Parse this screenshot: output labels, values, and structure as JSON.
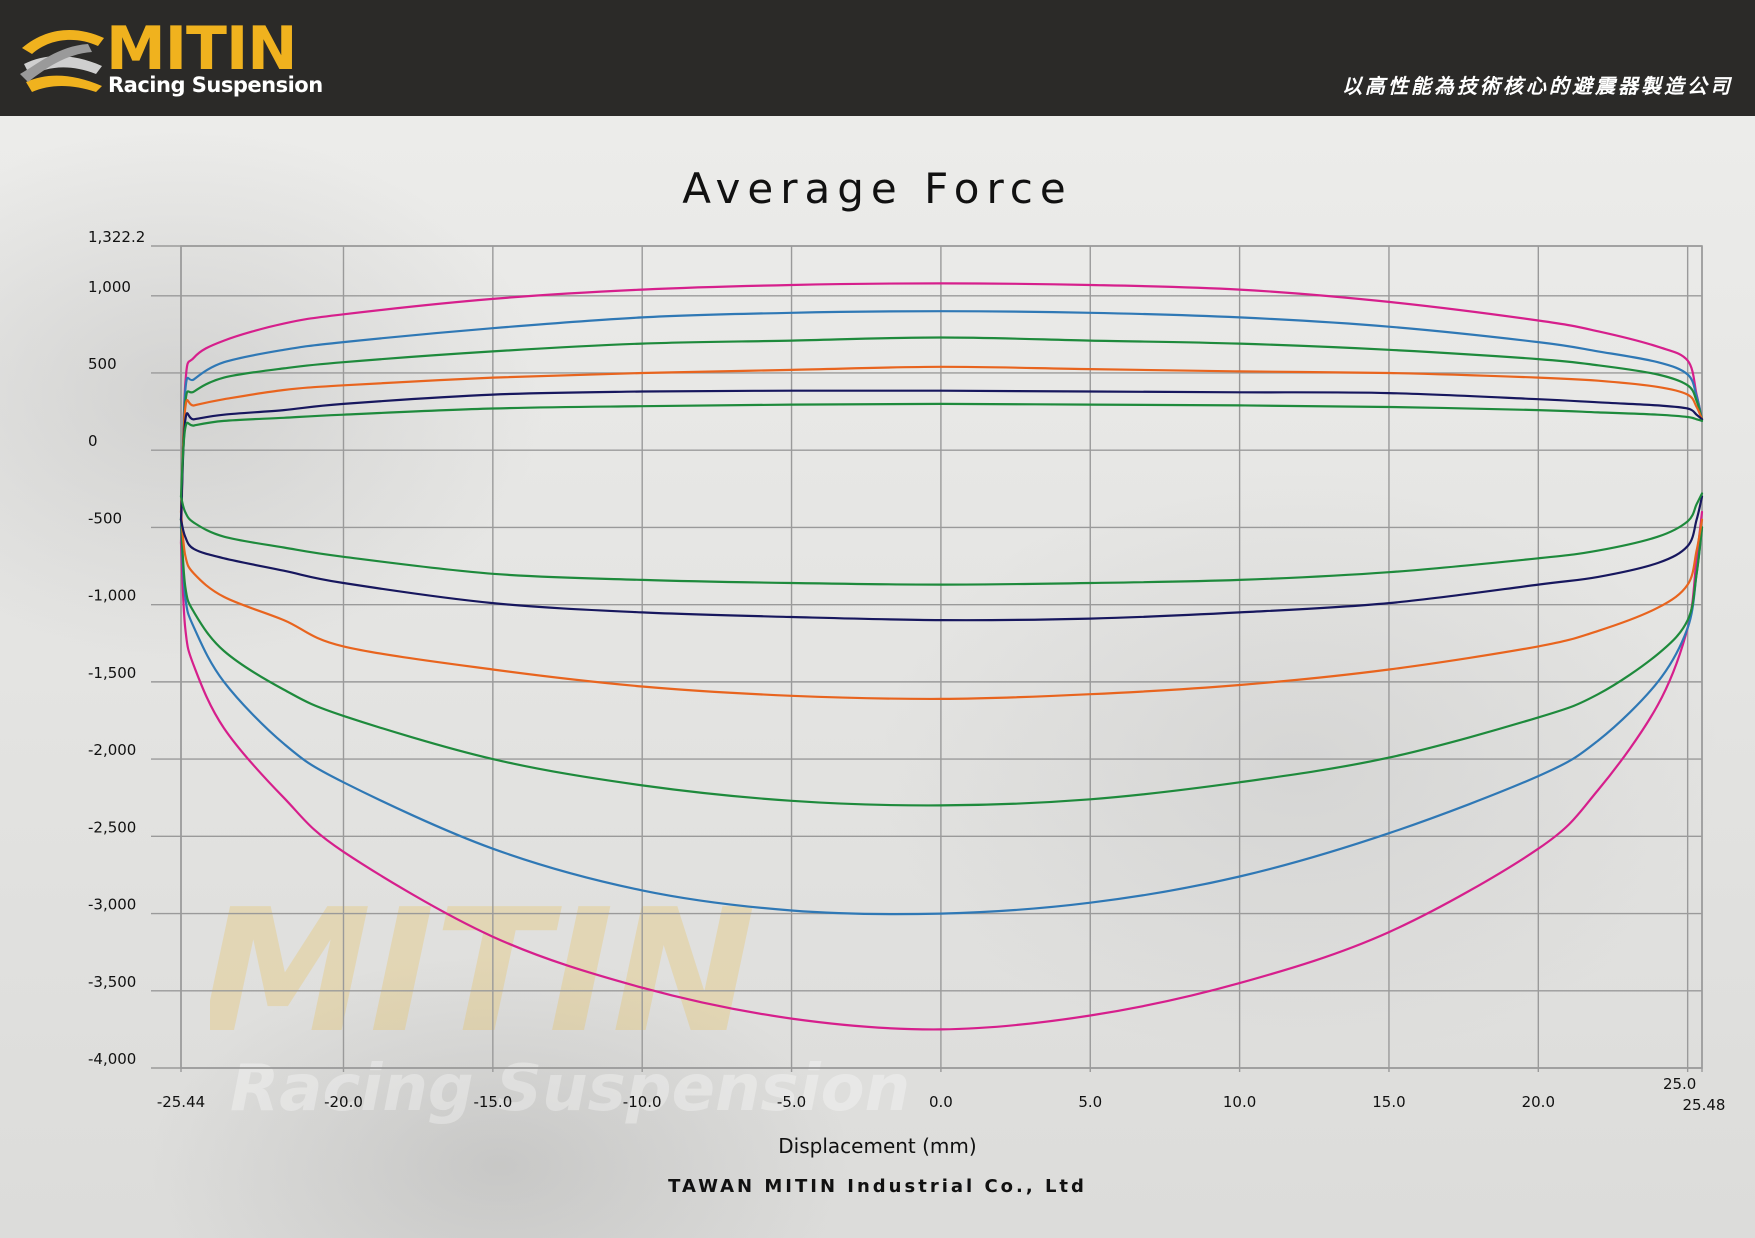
{
  "header": {
    "brand": "MITIN",
    "brand_sub": "Racing Suspension",
    "tagline": "以高性能為技術核心的避震器製造公司"
  },
  "colors": {
    "header_bg": "#2b2a28",
    "brand_gold": "#f0b21e",
    "grid": "#9a9a9a"
  },
  "footer": {
    "company": "TAWAN MITIN Industrial Co., Ltd"
  },
  "chart_data": {
    "type": "line",
    "title": "Average Force",
    "xlabel": "Displacement (mm)",
    "ylabel": "",
    "xlim": [
      -25.44,
      25.48
    ],
    "ylim": [
      -4000,
      1322.2
    ],
    "grid": true,
    "legend": "none",
    "x_ticks": [
      {
        "v": -25.44,
        "label": "-25.44"
      },
      {
        "v": -20.0,
        "label": "-20.0"
      },
      {
        "v": -15.0,
        "label": "-15.0"
      },
      {
        "v": -10.0,
        "label": "-10.0"
      },
      {
        "v": -5.0,
        "label": "-5.0"
      },
      {
        "v": 0.0,
        "label": "0.0"
      },
      {
        "v": 5.0,
        "label": "5.0"
      },
      {
        "v": 10.0,
        "label": "10.0"
      },
      {
        "v": 15.0,
        "label": "15.0"
      },
      {
        "v": 20.0,
        "label": "20.0"
      },
      {
        "v": 25.0,
        "label": "25.0"
      },
      {
        "v": 25.48,
        "label": "25.48"
      }
    ],
    "y_ticks": [
      {
        "v": 1322.2,
        "label": "1,322.2"
      },
      {
        "v": 1000,
        "label": "1,000"
      },
      {
        "v": 500,
        "label": "500"
      },
      {
        "v": 0,
        "label": "0"
      },
      {
        "v": -500,
        "label": "-500"
      },
      {
        "v": -1000,
        "label": "-1,000"
      },
      {
        "v": -1500,
        "label": "-1,500"
      },
      {
        "v": -2000,
        "label": "-2,000"
      },
      {
        "v": -2500,
        "label": "-2,500"
      },
      {
        "v": -3000,
        "label": "-3,000"
      },
      {
        "v": -3500,
        "label": "-3,500"
      },
      {
        "v": -4000,
        "label": "-4,000"
      }
    ],
    "x": [
      -25.44,
      -25.3,
      -25.0,
      -24.0,
      -22.0,
      -20.0,
      -15.0,
      -10.0,
      -5.0,
      0.0,
      5.0,
      10.0,
      15.0,
      20.0,
      22.0,
      24.0,
      25.0,
      25.3,
      25.48
    ],
    "series": [
      {
        "color": "#d61f8c",
        "values": [
          -600,
          420,
          600,
          710,
          820,
          880,
          980,
          1040,
          1070,
          1080,
          1070,
          1040,
          960,
          840,
          770,
          670,
          580,
          360,
          200
        ]
      },
      {
        "color": "#d61f8c",
        "values": [
          -600,
          -1150,
          -1400,
          -1800,
          -2250,
          -2600,
          -3150,
          -3480,
          -3680,
          -3750,
          -3660,
          -3450,
          -3120,
          -2580,
          -2200,
          -1650,
          -1150,
          -700,
          -400
        ]
      },
      {
        "color": "#2f78b5",
        "values": [
          -500,
          380,
          460,
          570,
          650,
          700,
          790,
          860,
          890,
          900,
          890,
          860,
          800,
          700,
          640,
          570,
          490,
          350,
          200
        ]
      },
      {
        "color": "#2f78b5",
        "values": [
          -500,
          -950,
          -1150,
          -1500,
          -1900,
          -2150,
          -2580,
          -2850,
          -2980,
          -3000,
          -2930,
          -2760,
          -2480,
          -2110,
          -1880,
          -1500,
          -1150,
          -800,
          -500
        ]
      },
      {
        "color": "#1e8a3c",
        "values": [
          -450,
          300,
          380,
          470,
          530,
          570,
          640,
          690,
          710,
          730,
          710,
          690,
          650,
          590,
          550,
          490,
          420,
          320,
          200
        ]
      },
      {
        "color": "#1e8a3c",
        "values": [
          -450,
          -880,
          -1050,
          -1300,
          -1550,
          -1720,
          -2000,
          -2170,
          -2270,
          -2300,
          -2260,
          -2150,
          -1990,
          -1730,
          -1580,
          -1320,
          -1100,
          -800,
          -500
        ]
      },
      {
        "color": "#e8641e",
        "values": [
          -400,
          270,
          290,
          330,
          390,
          420,
          470,
          500,
          520,
          540,
          525,
          510,
          500,
          470,
          450,
          410,
          360,
          280,
          200
        ]
      },
      {
        "color": "#e8641e",
        "values": [
          -400,
          -680,
          -800,
          -950,
          -1100,
          -1270,
          -1420,
          -1530,
          -1590,
          -1610,
          -1580,
          -1520,
          -1420,
          -1270,
          -1170,
          -1020,
          -870,
          -650,
          -450
        ]
      },
      {
        "color": "#17175e",
        "values": [
          -450,
          190,
          200,
          230,
          260,
          300,
          360,
          380,
          385,
          385,
          380,
          375,
          370,
          330,
          310,
          290,
          270,
          230,
          200
        ]
      },
      {
        "color": "#17175e",
        "values": [
          -450,
          -560,
          -640,
          -700,
          -780,
          -860,
          -990,
          -1050,
          -1080,
          -1100,
          -1090,
          -1050,
          -990,
          -870,
          -820,
          -730,
          -620,
          -450,
          -300
        ]
      },
      {
        "color": "#1e8a3c",
        "values": [
          -300,
          140,
          160,
          190,
          210,
          230,
          270,
          285,
          295,
          300,
          295,
          290,
          280,
          260,
          245,
          230,
          215,
          200,
          190
        ]
      },
      {
        "color": "#1e8a3c",
        "values": [
          -300,
          -400,
          -470,
          -560,
          -630,
          -690,
          -800,
          -840,
          -860,
          -870,
          -860,
          -840,
          -790,
          -700,
          -650,
          -560,
          -460,
          -350,
          -280
        ]
      }
    ]
  }
}
